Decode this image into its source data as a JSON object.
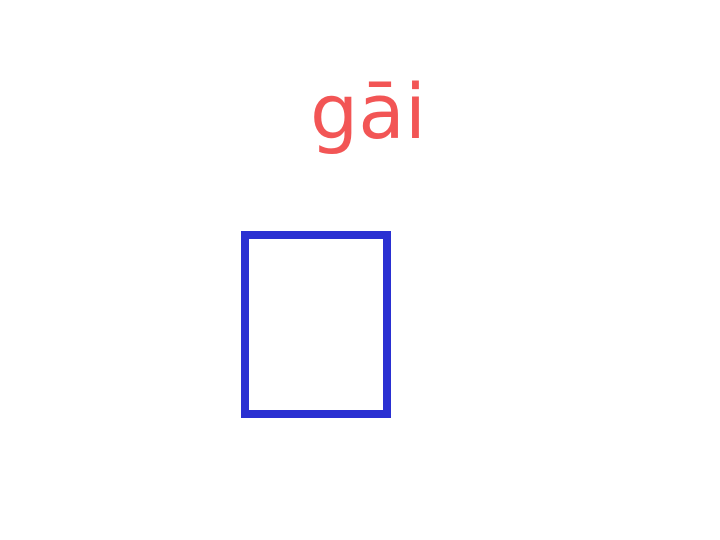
{
  "pinyin": "gāi",
  "colors": {
    "pinyin": "#f25555",
    "box_border": "#2a30d2",
    "background": "#ffffff"
  }
}
